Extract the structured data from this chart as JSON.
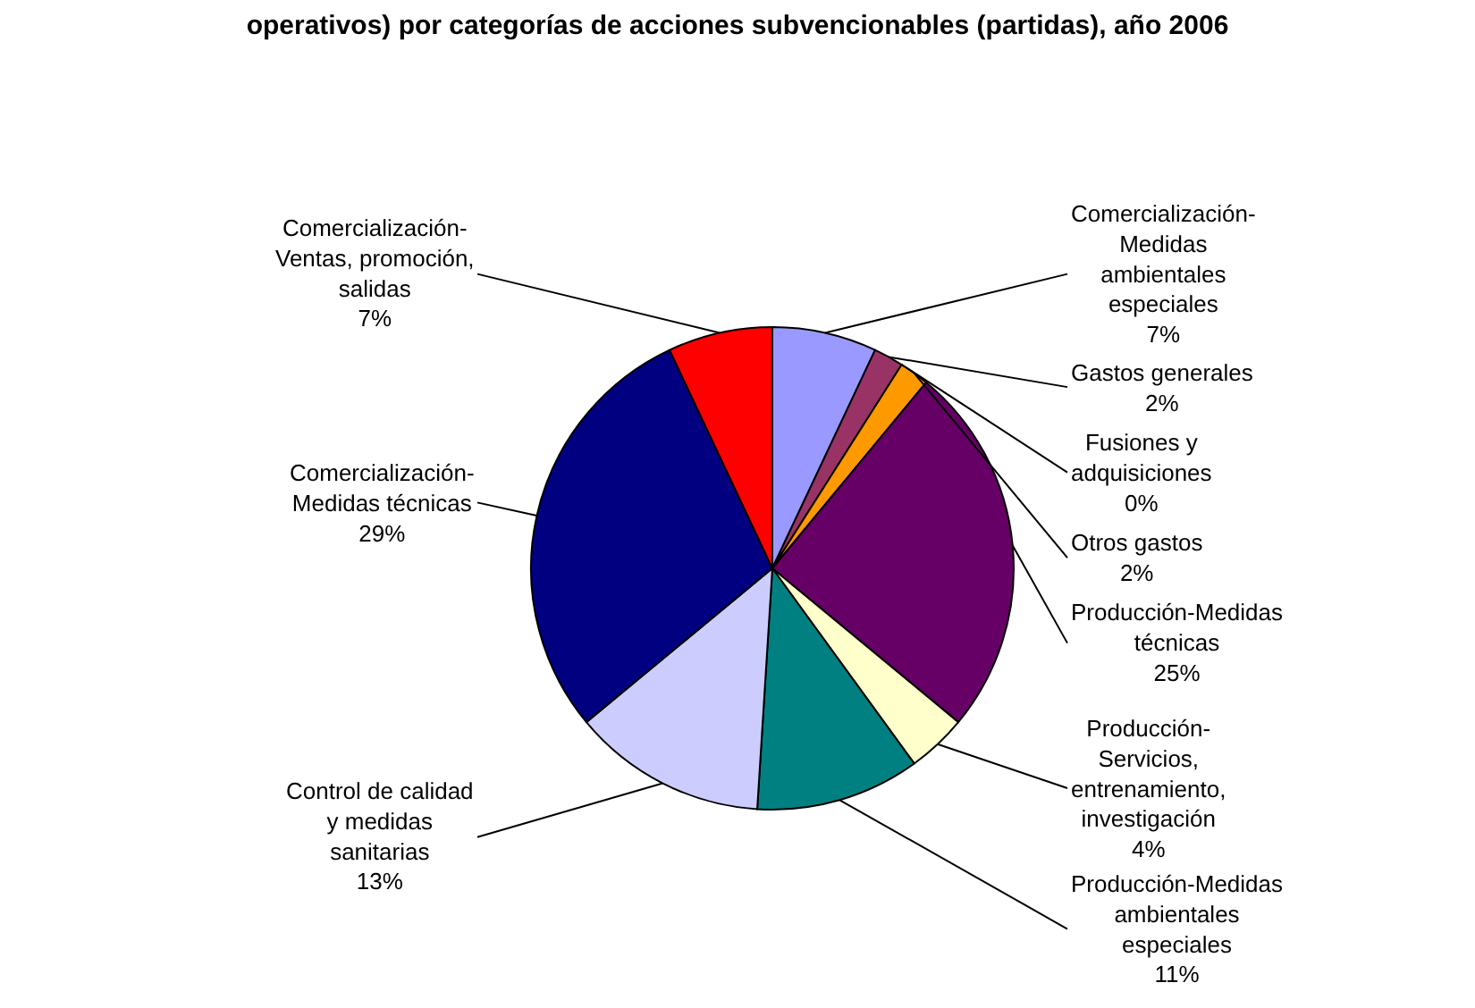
{
  "chart_data": {
    "type": "pie",
    "title": "operativos) por categorías de acciones subvencionables (partidas), año 2006",
    "categories": [
      "Comercialización-Medidas ambientales especiales",
      "Gastos generales",
      "Fusiones y adquisiciones",
      "Otros gastos",
      "Producción-Medidas técnicas",
      "Producción-Servicios, entrenamiento, investigación",
      "Producción-Medidas ambientales especiales",
      "Control de calidad y medidas sanitarias",
      "Comercialización-Medidas técnicas",
      "Comercialización-Ventas, promoción, salidas"
    ],
    "values": [
      7,
      2,
      0,
      2,
      25,
      4,
      11,
      13,
      29,
      7
    ],
    "value_labels": [
      "7%",
      "2%",
      "0%",
      "2%",
      "25%",
      "4%",
      "11%",
      "13%",
      "29%",
      "7%"
    ],
    "colors": [
      "#9999ff",
      "#993366",
      "#ffcc99",
      "#ff9900",
      "#660066",
      "#ffffcc",
      "#008080",
      "#ccccff",
      "#000080",
      "#ff0000"
    ],
    "legend": false
  }
}
